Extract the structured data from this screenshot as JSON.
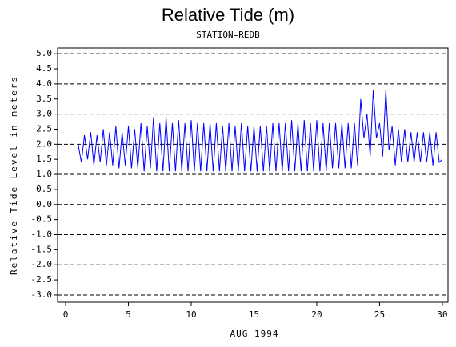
{
  "chart_data": {
    "type": "line",
    "title": "Relative Tide (m)",
    "subtitle": "STATION=REDB",
    "x_label": "AUG 1994",
    "y_label": "Relative Tide Level in meters",
    "xlim": [
      -0.64,
      30.45
    ],
    "ylim": [
      -3.24,
      5.19
    ],
    "xticks": [
      0,
      5,
      10,
      15,
      20,
      25,
      30
    ],
    "yticks": [
      {
        "value": 5,
        "label": "5.0"
      },
      {
        "value": 4.5,
        "label": "4.5"
      },
      {
        "value": 4,
        "label": "4.0"
      },
      {
        "value": 3.5,
        "label": "3.5"
      },
      {
        "value": 3,
        "label": "3.0"
      },
      {
        "value": 2.5,
        "label": "2.5"
      },
      {
        "value": 2,
        "label": "2.0"
      },
      {
        "value": 1.5,
        "label": "1.5"
      },
      {
        "value": 1,
        "label": "1.0"
      },
      {
        "value": 0.5,
        "label": "0.5"
      },
      {
        "value": 0,
        "label": "0.0"
      },
      {
        "value": -0.5,
        "label": "-0.5"
      },
      {
        "value": -1,
        "label": "-1.0"
      },
      {
        "value": -1.5,
        "label": "-1.5"
      },
      {
        "value": -2,
        "label": "-2.0"
      },
      {
        "value": -2.5,
        "label": "-2.5"
      },
      {
        "value": -3,
        "label": "-3.0"
      }
    ],
    "reference_lines": [
      5,
      4,
      3,
      2,
      1,
      0,
      -1,
      -2,
      -3
    ],
    "series": [
      {
        "color": "#0000ff",
        "x": [
          1,
          1.25,
          1.5,
          1.75,
          2,
          2.25,
          2.5,
          2.75,
          3,
          3.25,
          3.5,
          3.75,
          4,
          4.25,
          4.5,
          4.75,
          5,
          5.25,
          5.5,
          5.75,
          6,
          6.25,
          6.5,
          6.75,
          7,
          7.25,
          7.5,
          7.75,
          8,
          8.25,
          8.5,
          8.75,
          9,
          9.25,
          9.5,
          9.75,
          10,
          10.25,
          10.5,
          10.75,
          11,
          11.25,
          11.5,
          11.75,
          12,
          12.25,
          12.5,
          12.75,
          13,
          13.25,
          13.5,
          13.75,
          14,
          14.25,
          14.5,
          14.75,
          15,
          15.25,
          15.5,
          15.75,
          16,
          16.25,
          16.5,
          16.75,
          17,
          17.25,
          17.5,
          17.75,
          18,
          18.25,
          18.5,
          18.75,
          19,
          19.25,
          19.5,
          19.75,
          20,
          20.25,
          20.5,
          20.75,
          21,
          21.25,
          21.5,
          21.75,
          22,
          22.25,
          22.5,
          22.75,
          23,
          23.25,
          23.5,
          23.75,
          24,
          24.25,
          24.5,
          24.75,
          25,
          25.25,
          25.5,
          25.75,
          26,
          26.25,
          26.5,
          26.75,
          27,
          27.25,
          27.5,
          27.75,
          28,
          28.25,
          28.5,
          28.75,
          29,
          29.25,
          29.5,
          29.75,
          30
        ],
        "values": [
          2.0,
          1.4,
          2.3,
          1.5,
          2.4,
          1.3,
          2.3,
          1.4,
          2.5,
          1.3,
          2.4,
          1.3,
          2.6,
          1.2,
          2.4,
          1.3,
          2.6,
          1.2,
          2.5,
          1.2,
          2.7,
          1.1,
          2.6,
          1.2,
          2.9,
          1.1,
          2.7,
          1.1,
          2.9,
          1.1,
          2.7,
          1.1,
          2.8,
          1.1,
          2.7,
          1.1,
          2.8,
          1.1,
          2.7,
          1.1,
          2.7,
          1.1,
          2.7,
          1.1,
          2.7,
          1.1,
          2.6,
          1.1,
          2.7,
          1.1,
          2.6,
          1.1,
          2.7,
          1.1,
          2.6,
          1.1,
          2.6,
          1.1,
          2.6,
          1.1,
          2.6,
          1.1,
          2.7,
          1.1,
          2.7,
          1.1,
          2.7,
          1.1,
          2.8,
          1.1,
          2.7,
          1.1,
          2.8,
          1.1,
          2.7,
          1.1,
          2.8,
          1.1,
          2.7,
          1.1,
          2.7,
          1.2,
          2.7,
          1.2,
          2.7,
          1.2,
          2.7,
          1.2,
          2.7,
          1.3,
          3.5,
          2.2,
          3.0,
          1.6,
          3.8,
          2.2,
          2.7,
          1.6,
          3.8,
          1.8,
          2.6,
          1.3,
          2.5,
          1.4,
          2.5,
          1.4,
          2.4,
          1.4,
          2.4,
          1.4,
          2.4,
          1.4,
          2.4,
          1.3,
          2.4,
          1.4,
          1.5
        ]
      }
    ]
  }
}
